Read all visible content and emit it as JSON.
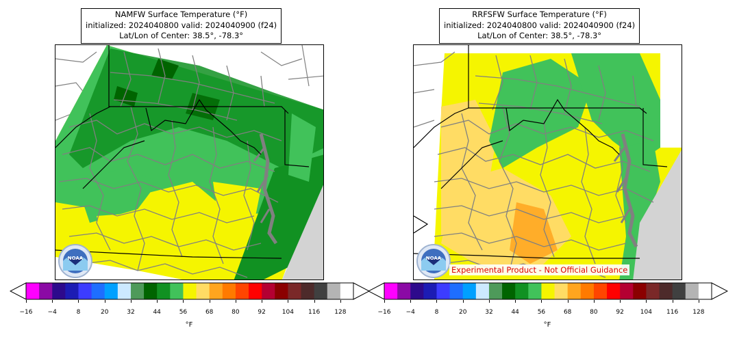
{
  "panels": [
    {
      "title_line1": "NAMFW Surface Temperature (°F)",
      "title_line2": "initialized: 2024040800 valid: 2024040900 (f24)",
      "title_line3": "Lat/Lon of Center: 38.5°, -78.3°",
      "logo_text": "NOAA"
    },
    {
      "title_line1": "RRFSFW Surface Temperature (°F)",
      "title_line2": "initialized: 2024040800 valid: 2024040900 (f24)",
      "title_line3": "Lat/Lon of Center: 38.5°, -78.3°",
      "logo_text": "NOAA",
      "disclaimer": "Experimental Product - Not Official Guidance"
    }
  ],
  "colorbar": {
    "units": "°F",
    "tick_labels": [
      "−16",
      "−4",
      "8",
      "20",
      "32",
      "44",
      "56",
      "68",
      "80",
      "92",
      "104",
      "116",
      "128"
    ],
    "colors": [
      "#ff00ff",
      "#8b0aa5",
      "#2d0a8c",
      "#1c1cb4",
      "#3c3cff",
      "#1e6eff",
      "#00a0ff",
      "#cce9ff",
      "#4e9a5a",
      "#006400",
      "#119122",
      "#41c25a",
      "#f5f500",
      "#ffdc64",
      "#ffa51e",
      "#ff7a00",
      "#ff4500",
      "#ff0000",
      "#b40032",
      "#8b0000",
      "#7a2828",
      "#4d2a2a",
      "#404040",
      "#b4b4b4",
      "#ffffff"
    ],
    "under_color": "#ffffff",
    "over_color": "#ffffff"
  },
  "colors": {
    "ocean": "#d3d3d3",
    "no_data": "#ffffff",
    "county_lines": "#808080",
    "state_lines": "#000000"
  }
}
